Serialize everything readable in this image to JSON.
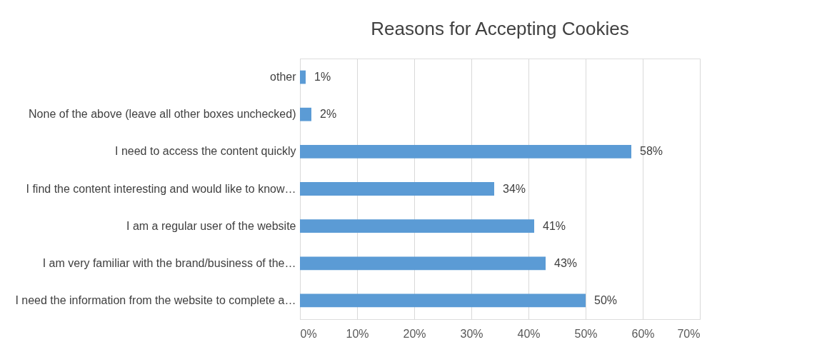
{
  "chart_data": {
    "type": "bar",
    "orientation": "horizontal",
    "title": "Reasons for Accepting Cookies",
    "categories": [
      "other",
      "None of the above (leave all other boxes unchecked)",
      "I need to access the content quickly",
      "I find the content interesting and would like to know…",
      "I am a regular user of the website",
      "I am very familiar with the brand/business of the…",
      "I need the information from the website to complete a…"
    ],
    "values": [
      1,
      2,
      58,
      34,
      41,
      43,
      50
    ],
    "value_labels": [
      "1%",
      "2%",
      "58%",
      "34%",
      "41%",
      "43%",
      "50%"
    ],
    "color": "#5b9bd5",
    "xlim": [
      0,
      70
    ],
    "xticks": [
      {
        "value": 0,
        "label": "0%"
      },
      {
        "value": 10,
        "label": "10%"
      },
      {
        "value": 20,
        "label": "20%"
      },
      {
        "value": 30,
        "label": "30%"
      },
      {
        "value": 40,
        "label": "40%"
      },
      {
        "value": 50,
        "label": "50%"
      },
      {
        "value": 60,
        "label": "60%"
      },
      {
        "value": 70,
        "label": "70%"
      }
    ],
    "grid": "x"
  }
}
